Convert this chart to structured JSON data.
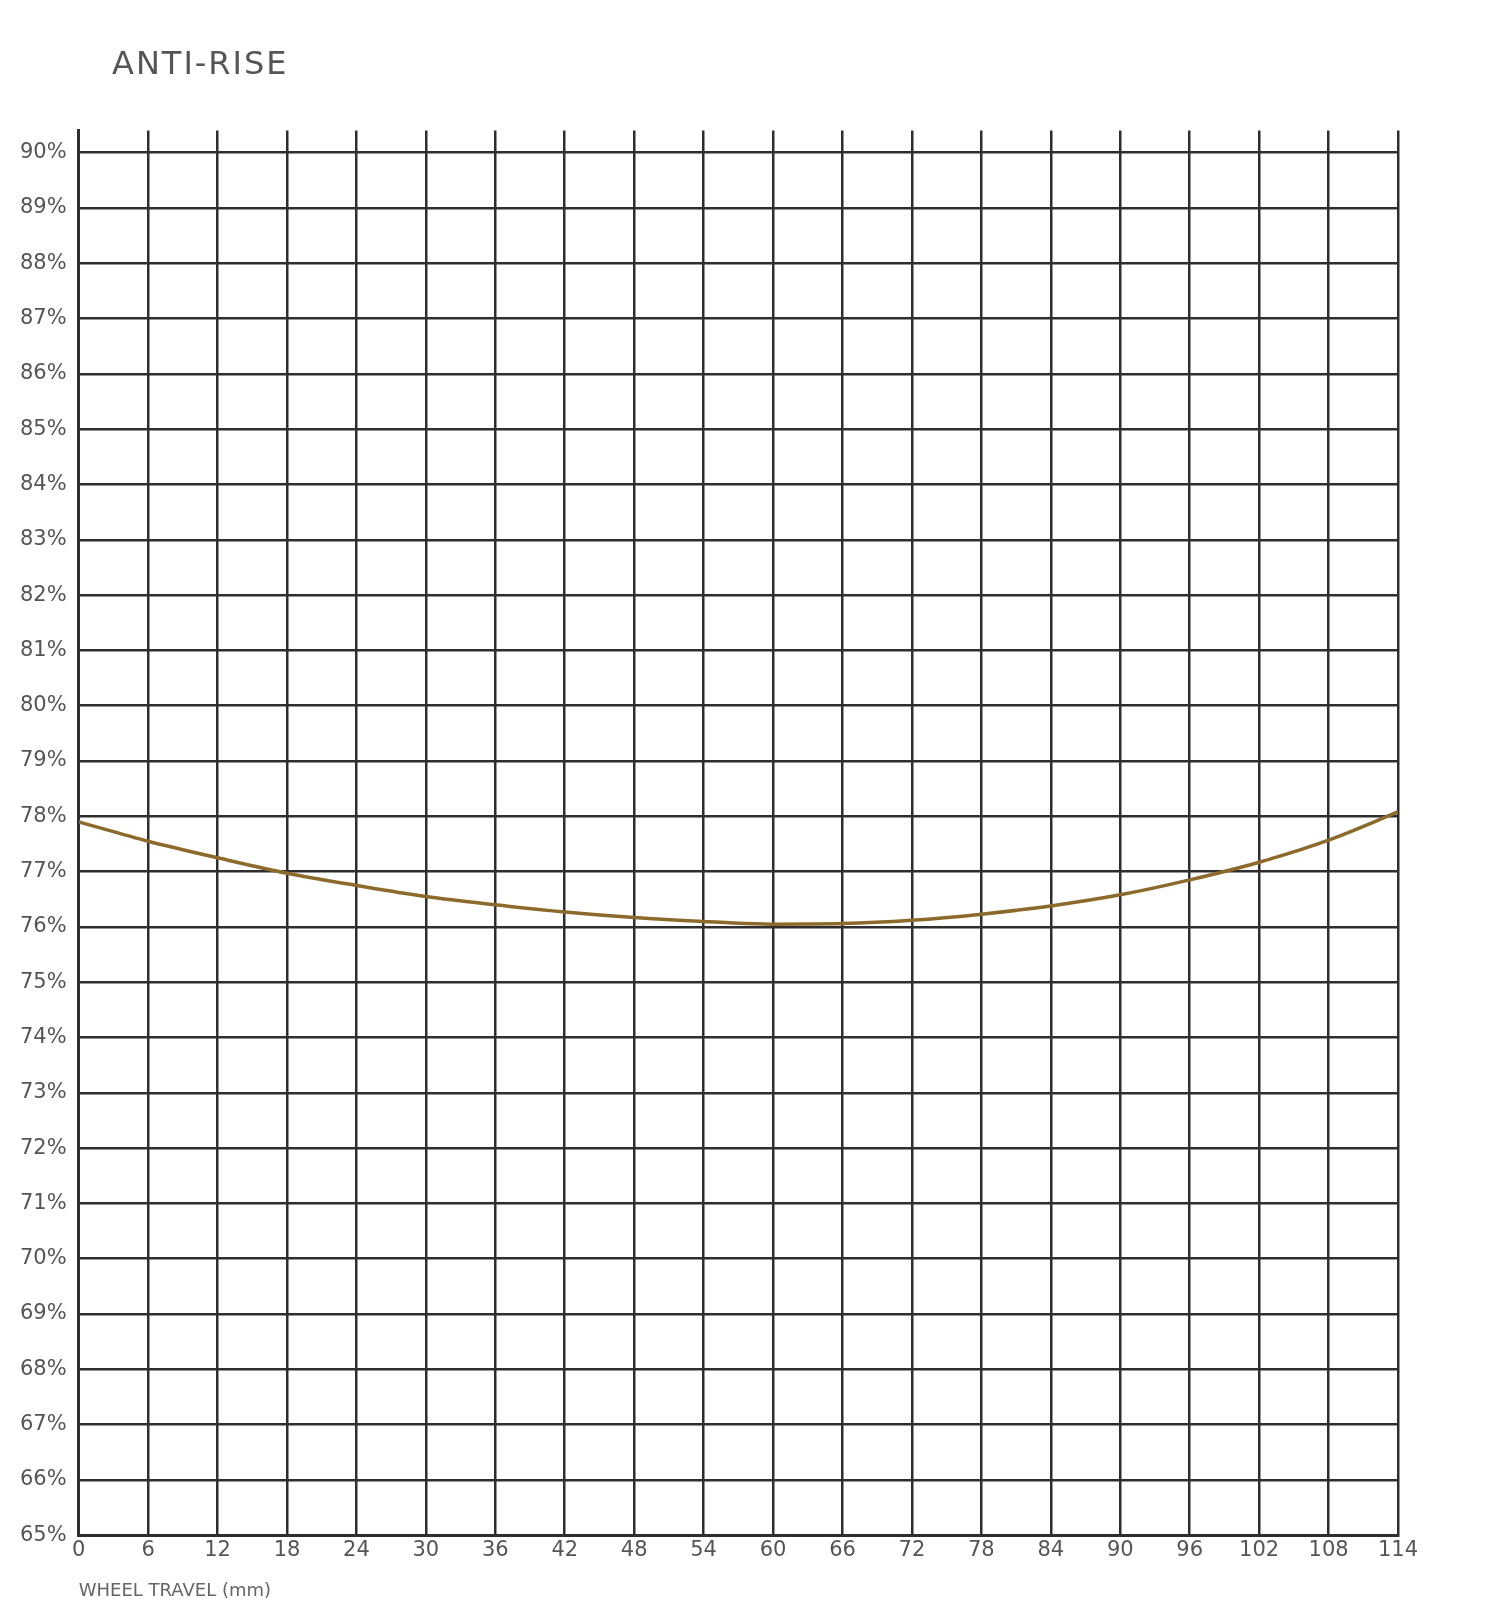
{
  "chart_data": {
    "type": "line",
    "title": "ANTI-RISE",
    "xlabel": "WHEEL TRAVEL (mm)",
    "x": [
      0,
      6,
      12,
      18,
      24,
      30,
      36,
      42,
      48,
      54,
      60,
      66,
      72,
      78,
      84,
      90,
      96,
      102,
      108,
      114
    ],
    "series": [
      {
        "color": "#8c6a2c",
        "values": [
          77.9,
          77.55,
          77.25,
          76.97,
          76.75,
          76.55,
          76.4,
          76.27,
          76.17,
          76.1,
          76.05,
          76.06,
          76.12,
          76.23,
          76.38,
          76.58,
          76.85,
          77.17,
          77.57,
          78.08
        ]
      }
    ],
    "xlim": [
      0,
      114
    ],
    "xticks": [
      0,
      6,
      12,
      18,
      24,
      30,
      36,
      42,
      48,
      54,
      60,
      66,
      72,
      78,
      84,
      90,
      96,
      102,
      108,
      114
    ],
    "ylim": [
      65,
      90.4
    ],
    "yticks": [
      {
        "value": 65,
        "label": "65%"
      },
      {
        "value": 66,
        "label": "66%"
      },
      {
        "value": 67,
        "label": "67%"
      },
      {
        "value": 68,
        "label": "68%"
      },
      {
        "value": 69,
        "label": "69%"
      },
      {
        "value": 70,
        "label": "70%"
      },
      {
        "value": 71,
        "label": "71%"
      },
      {
        "value": 72,
        "label": "72%"
      },
      {
        "value": 73,
        "label": "73%"
      },
      {
        "value": 74,
        "label": "74%"
      },
      {
        "value": 75,
        "label": "75%"
      },
      {
        "value": 76,
        "label": "76%"
      },
      {
        "value": 77,
        "label": "77%"
      },
      {
        "value": 78,
        "label": "78%"
      },
      {
        "value": 79,
        "label": "79%"
      },
      {
        "value": 80,
        "label": "80%"
      },
      {
        "value": 81,
        "label": "81%"
      },
      {
        "value": 82,
        "label": "82%"
      },
      {
        "value": 83,
        "label": "83%"
      },
      {
        "value": 84,
        "label": "84%"
      },
      {
        "value": 85,
        "label": "85%"
      },
      {
        "value": 86,
        "label": "86%"
      },
      {
        "value": 87,
        "label": "87%"
      },
      {
        "value": 88,
        "label": "88%"
      },
      {
        "value": 89,
        "label": "89%"
      },
      {
        "value": 90,
        "label": "90%"
      }
    ],
    "grid": true,
    "legend": false,
    "marker": "none",
    "line_style": "solid"
  }
}
